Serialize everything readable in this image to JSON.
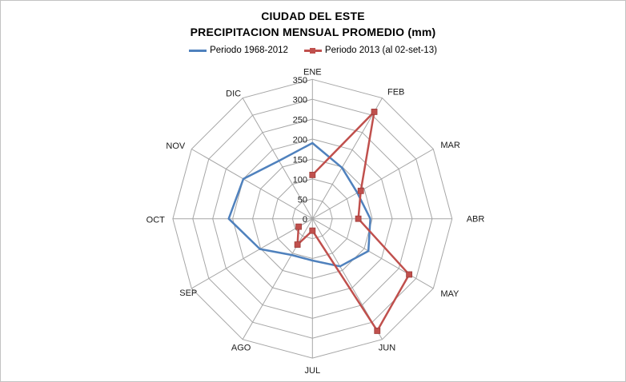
{
  "title": {
    "line1": "CIUDAD DEL ESTE",
    "line2": "PRECIPITACION MENSUAL PROMEDIO (mm)"
  },
  "legend": {
    "items": [
      {
        "label": "Periodo 1968-2012",
        "color": "#4F81BD",
        "marker": "line"
      },
      {
        "label": "Periodo 2013 (al 02-set-13)",
        "color": "#C0504D",
        "marker": "line-square"
      }
    ]
  },
  "chart_data": {
    "type": "radar",
    "title": "CIUDAD DEL ESTE - PRECIPITACION MENSUAL PROMEDIO (mm)",
    "categories": [
      "ENE",
      "FEB",
      "MAR",
      "ABR",
      "MAY",
      "JUN",
      "JUL",
      "AGO",
      "SEP",
      "OCT",
      "NOV",
      "DIC"
    ],
    "axis": {
      "min": 0,
      "max": 350,
      "step": 50,
      "tick_labels": [
        "0",
        "50",
        "100",
        "150",
        "200",
        "250",
        "300",
        "350"
      ]
    },
    "grid": true,
    "gridline_color": "#A6A6A6",
    "legend_position": "top",
    "series": [
      {
        "name": "Periodo 1968-2012",
        "color": "#4F81BD",
        "marker": "none",
        "closed": true,
        "values": [
          190,
          148,
          130,
          145,
          162,
          138,
          105,
          105,
          152,
          210,
          200,
          168
        ]
      },
      {
        "name": "Periodo 2013 (al 02-set-13)",
        "color": "#C0504D",
        "marker": "square",
        "closed": false,
        "values": [
          110,
          310,
          140,
          115,
          280,
          325,
          30,
          75,
          40,
          null,
          null,
          null
        ]
      }
    ]
  }
}
